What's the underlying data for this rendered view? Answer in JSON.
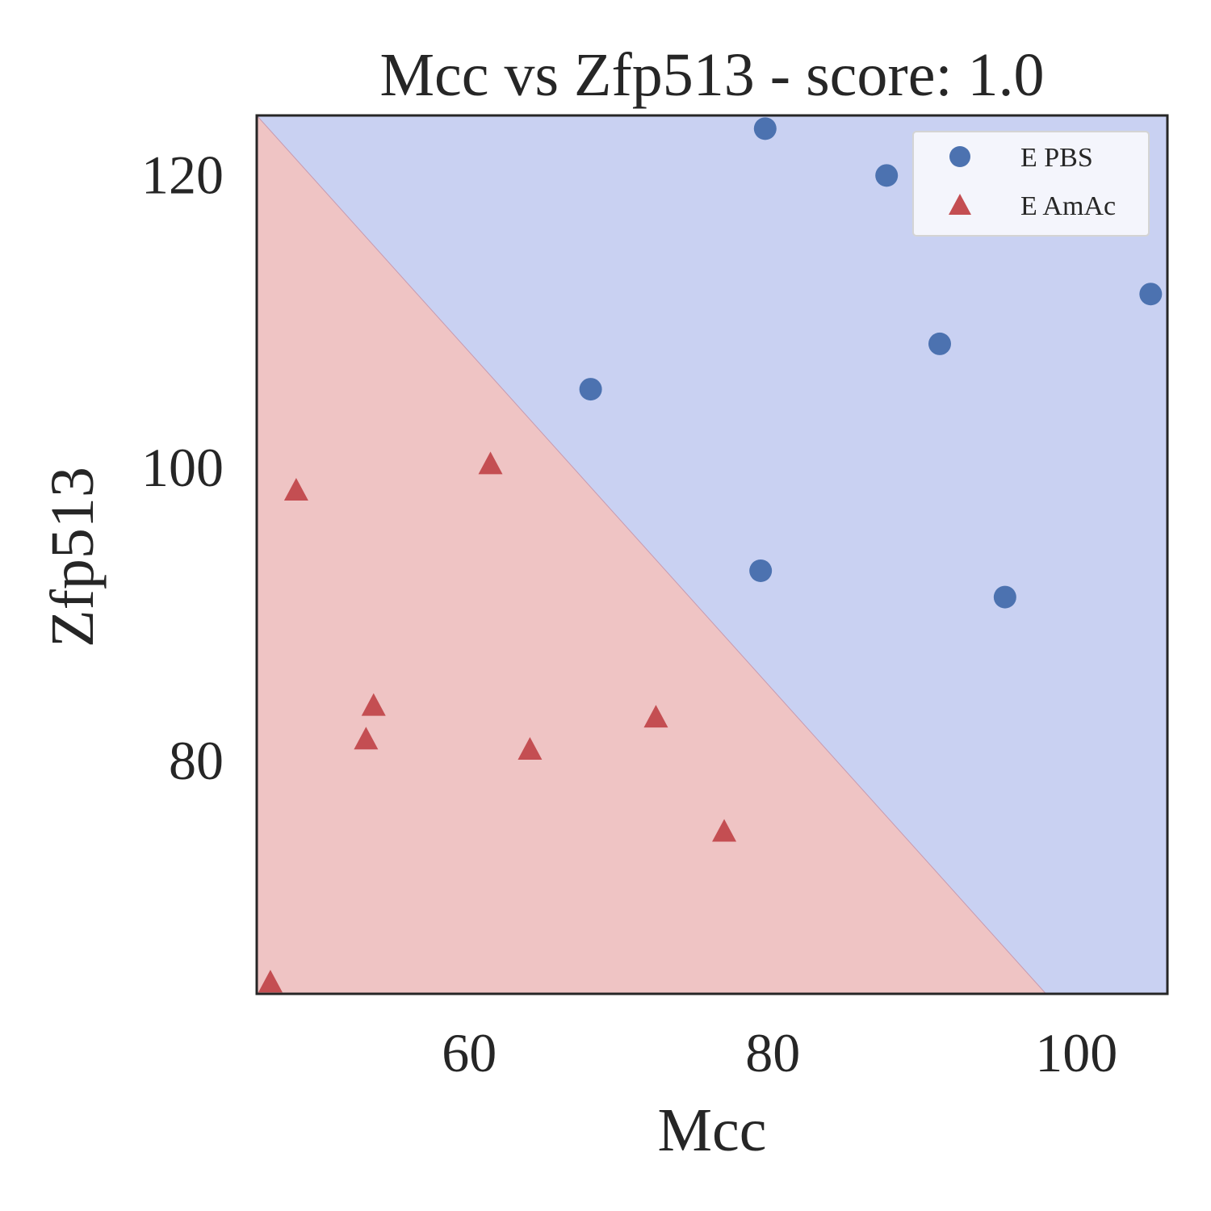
{
  "chart_data": {
    "type": "scatter",
    "title": "Mcc vs Zfp513 - score: 1.0",
    "xlabel": "Mcc",
    "ylabel": "Zfp513",
    "xlim": [
      46,
      106
    ],
    "ylim": [
      64,
      124
    ],
    "xticks": [
      60,
      80,
      100
    ],
    "yticks": [
      80,
      100,
      120
    ],
    "grid": false,
    "legend_position": "top-right",
    "decision_boundary": {
      "line": [
        [
          46,
          124
        ],
        [
          98,
          64
        ]
      ],
      "regions": [
        {
          "label": "E PBS",
          "side": "upper-right",
          "color": "#c9d1f2"
        },
        {
          "label": "E AmAc",
          "side": "lower-left",
          "color": "#efc4c4"
        }
      ]
    },
    "series": [
      {
        "name": "E PBS",
        "marker": "circle",
        "color": "#4c72b0",
        "points": [
          [
            79.5,
            123.1
          ],
          [
            87.5,
            119.9
          ],
          [
            104.9,
            111.8
          ],
          [
            91.0,
            108.4
          ],
          [
            68.0,
            105.3
          ],
          [
            79.2,
            92.9
          ],
          [
            95.3,
            91.1
          ]
        ]
      },
      {
        "name": "E AmAc",
        "marker": "triangle",
        "color": "#c44e52",
        "points": [
          [
            61.4,
            100.1
          ],
          [
            48.6,
            98.3
          ],
          [
            53.7,
            83.6
          ],
          [
            53.2,
            81.3
          ],
          [
            64.0,
            80.6
          ],
          [
            72.3,
            82.8
          ],
          [
            76.8,
            75.0
          ],
          [
            46.9,
            64.7
          ]
        ]
      }
    ]
  }
}
